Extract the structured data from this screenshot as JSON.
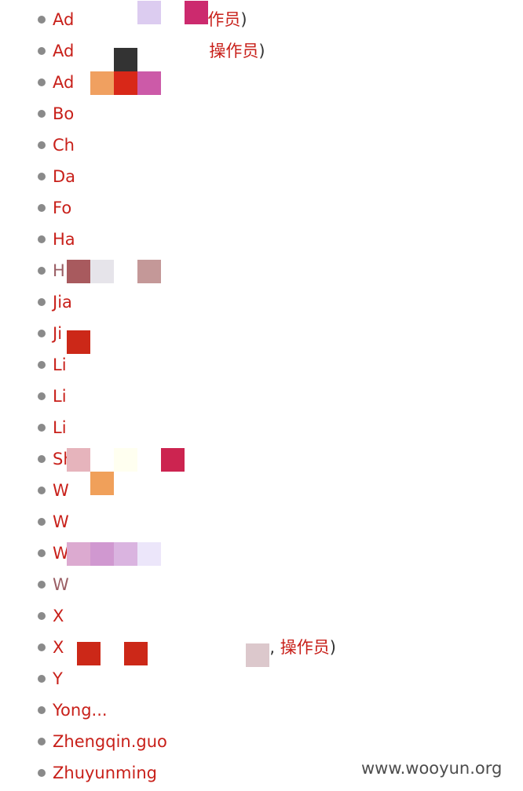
{
  "users": [
    {
      "name": "Ad",
      "role": "作员",
      "close": ")",
      "redact_colors": [
        "#dcccf0",
        "#cc2a6e"
      ]
    },
    {
      "name": "Ad",
      "role": "操作员",
      "close": ")",
      "redact_colors": [
        "#333333"
      ]
    },
    {
      "name": "Ad",
      "redact_colors": [
        "#f0a060",
        "#d82818",
        "#cc5aa8"
      ]
    },
    {
      "name": "Bo"
    },
    {
      "name": "Ch"
    },
    {
      "name": "Da"
    },
    {
      "name": "Fo"
    },
    {
      "name": "Ha"
    },
    {
      "name": "H",
      "muted": true,
      "redact_colors": [
        "#a85a5e",
        "#e6e4ea",
        "#c49898"
      ]
    },
    {
      "name": "Jia"
    },
    {
      "name": "Ji",
      "redact_colors": [
        "#cc2818"
      ]
    },
    {
      "name": "Li"
    },
    {
      "name": "Li"
    },
    {
      "name": "Li"
    },
    {
      "name": "Sh",
      "redact_colors": [
        "#e6b4bc",
        "#fffff0",
        "#cc2450",
        "#f0a05a"
      ]
    },
    {
      "name": "W"
    },
    {
      "name": "W"
    },
    {
      "name": "W",
      "redact_colors": [
        "#dcaad0",
        "#d098d0",
        "#dab4e0",
        "#ece6fa"
      ]
    },
    {
      "name": "W",
      "muted": true
    },
    {
      "name": "X"
    },
    {
      "name": "X",
      "sep": ",",
      "role": "操作员",
      "close": ")",
      "redact_colors": [
        "#cc2818",
        "#cc2818",
        "#dcc8cc"
      ]
    },
    {
      "name": "Y"
    },
    {
      "name": "Yong..."
    },
    {
      "name": "Zhengqin.guo"
    },
    {
      "name": "Zhuyunming"
    }
  ],
  "watermark": "www.wooyun.org"
}
